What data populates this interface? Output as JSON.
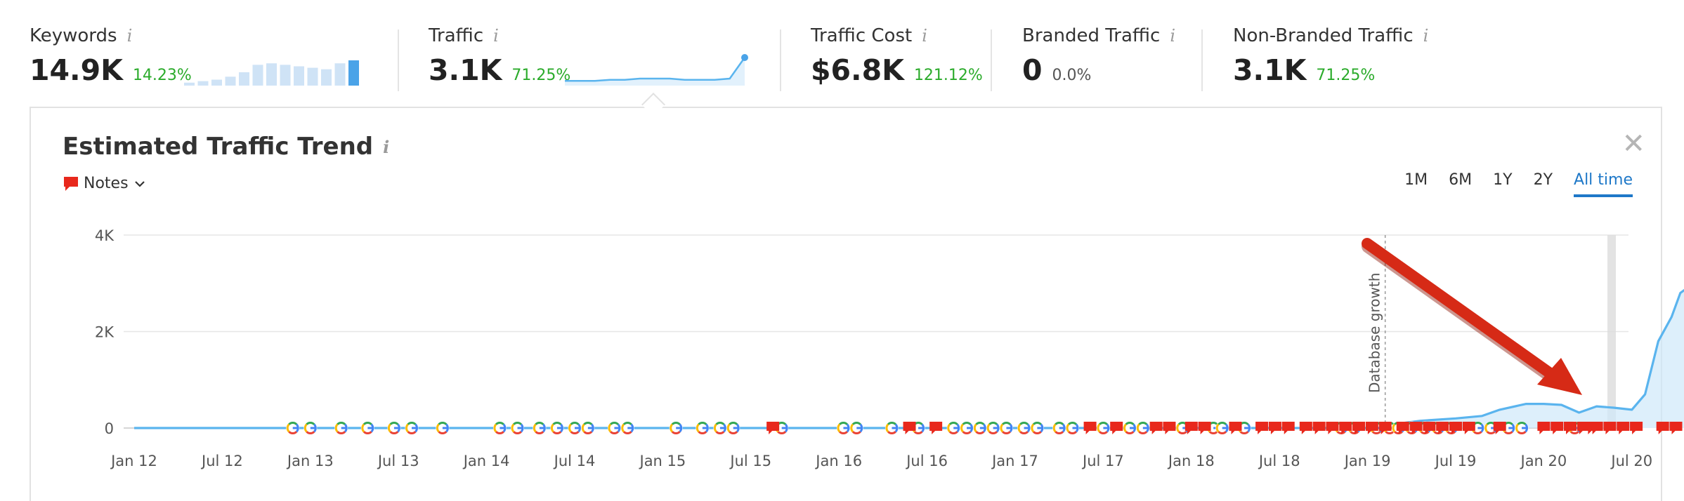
{
  "metrics": {
    "keywords": {
      "label": "Keywords",
      "value": "14.9K",
      "change": "14.23%",
      "bars": [
        2,
        3,
        4,
        6,
        9,
        14,
        15,
        14,
        13,
        12,
        11,
        15,
        17
      ]
    },
    "traffic": {
      "label": "Traffic",
      "value": "3.1K",
      "change": "71.25%",
      "trend": [
        4,
        4,
        4,
        5,
        5,
        6,
        6,
        6,
        5,
        5,
        5,
        6,
        24
      ]
    },
    "traffic_cost": {
      "label": "Traffic Cost",
      "value": "$6.8K",
      "change": "121.12%"
    },
    "branded": {
      "label": "Branded Traffic",
      "value": "0",
      "change": "0.0%"
    },
    "non_branded": {
      "label": "Non-Branded Traffic",
      "value": "3.1K",
      "change": "71.25%"
    },
    "info_glyph": "i"
  },
  "panel": {
    "title": "Estimated Traffic Trend",
    "notes_label": "Notes",
    "close": "✕",
    "ranges": [
      "1M",
      "6M",
      "1Y",
      "2Y",
      "All time"
    ],
    "active_range": "All time"
  },
  "colors": {
    "line": "#5ab4ee",
    "area": "#cfe8f9",
    "note": "#e8281c",
    "arrow": "#d62a16",
    "positive": "#2bab2b",
    "active_tab": "#1e78c8"
  },
  "icons": {
    "google": "google-update-icon",
    "note": "note-flag-icon",
    "chevron": "chevron-down-icon",
    "close": "close-icon"
  },
  "chart_data": {
    "type": "area",
    "title": "Estimated Traffic Trend",
    "xlabel": "",
    "ylabel": "",
    "ylim": [
      0,
      4000
    ],
    "yticks": [
      0,
      2000,
      4000
    ],
    "ytick_labels": [
      "0",
      "2K",
      "4K"
    ],
    "xtick_labels": [
      "Jan 12",
      "Jul 12",
      "Jan 13",
      "Jul 13",
      "Jan 14",
      "Jul 14",
      "Jan 15",
      "Jul 15",
      "Jan 16",
      "Jul 16",
      "Jan 17",
      "Jul 17",
      "Jan 18",
      "Jul 18",
      "Jan 19",
      "Jul 19",
      "Jan 20",
      "Jul 20"
    ],
    "grid": true,
    "series": [
      {
        "x": [
          0,
          14,
          14.3,
          14.6,
          15,
          15.3,
          15.5,
          15.8,
          16,
          16.2,
          16.4,
          16.6,
          16.8,
          17,
          17.15,
          17.3,
          17.45,
          17.55,
          17.7,
          17.75,
          17.8
        ],
        "values": [
          0,
          0,
          80,
          150,
          200,
          250,
          380,
          500,
          500,
          480,
          320,
          450,
          420,
          380,
          700,
          1800,
          2300,
          2800,
          3000,
          3100,
          3100
        ]
      }
    ],
    "annotations": [
      {
        "text": "Database growth",
        "x": 14.2
      },
      {
        "text": "",
        "type": "arrow"
      }
    ],
    "markers": {
      "google": [
        1.8,
        2.0,
        2.35,
        2.65,
        2.95,
        3.15,
        3.5,
        4.15,
        4.35,
        4.6,
        4.8,
        5.0,
        5.15,
        5.45,
        5.6,
        6.15,
        6.45,
        6.65,
        6.8,
        7.35,
        8.05,
        8.2,
        8.6,
        8.9,
        9.3,
        9.45,
        9.6,
        9.75,
        9.9,
        10.1,
        10.25,
        10.5,
        10.65,
        11.0,
        11.3,
        11.45,
        11.9,
        12.25,
        12.35,
        12.6,
        13.7,
        13.85,
        14.1,
        14.25,
        14.35,
        14.5,
        14.65,
        14.8,
        14.95,
        15.25,
        15.4,
        15.6,
        15.75,
        16.35
      ],
      "notes": [
        7.25,
        8.8,
        9.1,
        10.85,
        11.15,
        11.6,
        11.75,
        12.0,
        12.15,
        12.5,
        12.8,
        12.95,
        13.1,
        13.3,
        13.45,
        13.6,
        13.75,
        13.9,
        14.05,
        14.2,
        14.4,
        14.55,
        14.7,
        14.85,
        15.0,
        15.15,
        15.5,
        16.0,
        16.15,
        16.3,
        16.45,
        16.55,
        16.6,
        16.75,
        16.9,
        17.05,
        17.35,
        17.5,
        17.7
      ]
    }
  }
}
